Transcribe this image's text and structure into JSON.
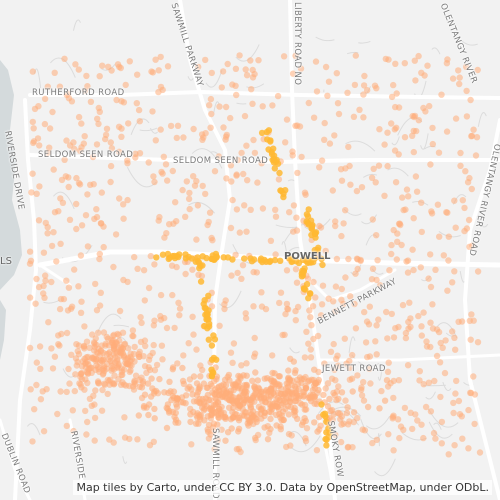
{
  "map": {
    "place_label": "POWELL",
    "partial_label": "LS",
    "attribution": "Map tiles by Carto, under CC BY 3.0. Data by OpenStreetMap, under ODbL.",
    "roads": {
      "rutherford": "RUTHERFORD ROAD",
      "seldom_seen_w": "SELDOM SEEN ROAD",
      "seldom_seen_e": "SELDOM SEEN ROAD",
      "sawmill": "SAWMILL PARKWAY",
      "liberty": "LIBERTY ROAD NO",
      "riverside": "RIVERSIDE DRIVE",
      "bennett": "BENNETT PARKWAY",
      "jewett": "JEWETT ROAD",
      "olentangy": "OLENTANGY RIVER ROAD",
      "olentangy_top": "OLENTANGY RIVER",
      "dublin": "DUBLIN ROAD",
      "riverside_s": "RIVERSIDE",
      "sawmill_s": "SAWMILL ROAD",
      "smoky": "SMOKY ROW"
    },
    "colors": {
      "background": "#f2f2f2",
      "water": "#d4dadc",
      "road": "#ffffff",
      "minor_road": "#d9d9d9",
      "point_light": "#ffad7a",
      "point_dense": "#ffb833"
    }
  }
}
